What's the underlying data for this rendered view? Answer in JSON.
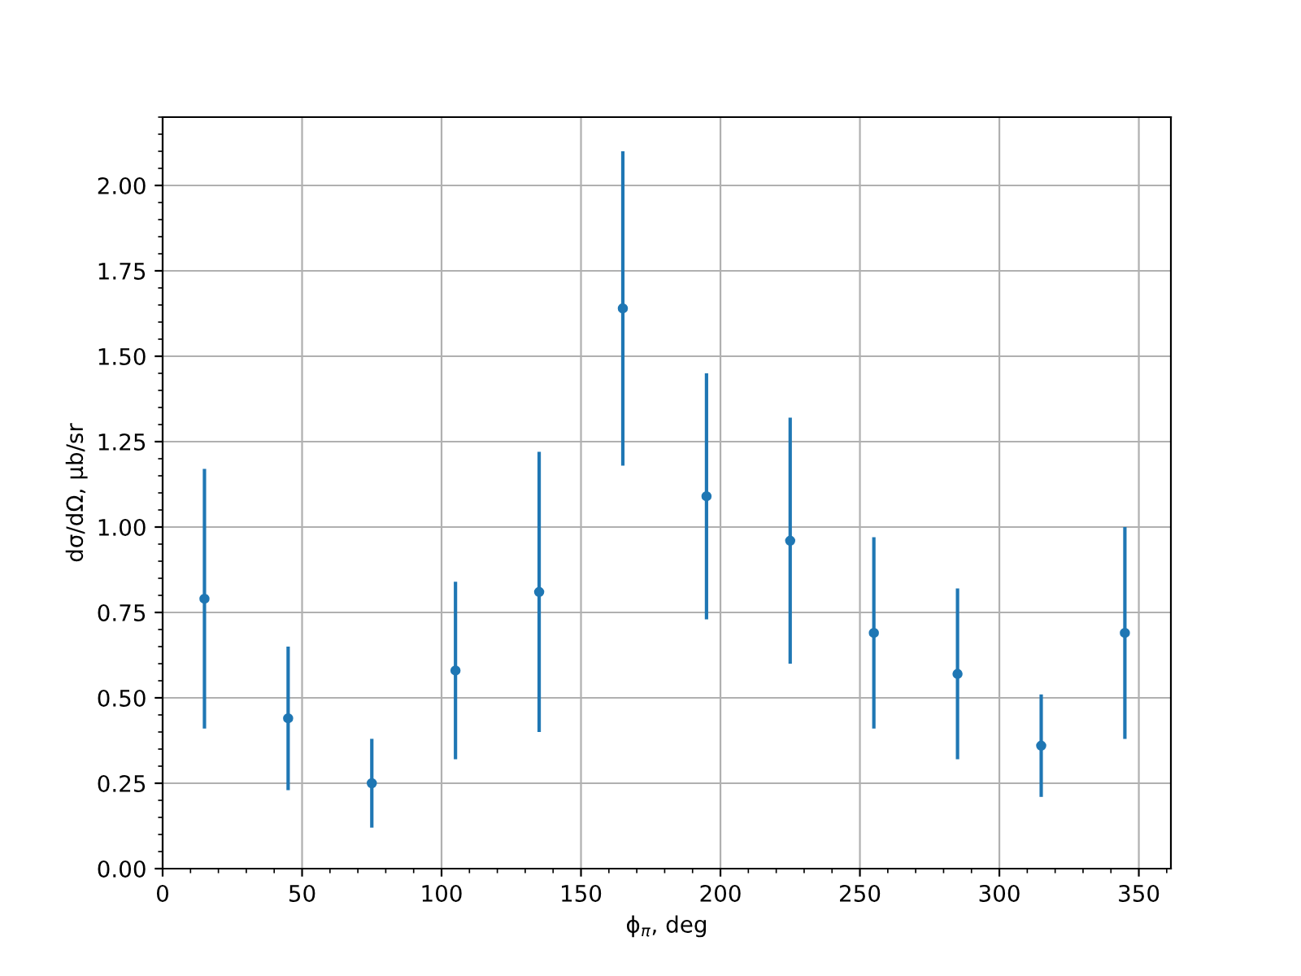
{
  "chart_data": {
    "type": "scatter",
    "xlabel": "ϕ$_{π}$, deg",
    "ylabel": "dσ/dΩ, μb/sr",
    "x": [
      15,
      45,
      75,
      105,
      135,
      165,
      195,
      225,
      255,
      285,
      315,
      345
    ],
    "series": [
      {
        "color": "#1f77b4",
        "values": [
          0.79,
          0.44,
          0.25,
          0.58,
          0.81,
          1.64,
          1.09,
          0.96,
          0.69,
          0.57,
          0.36,
          0.69
        ],
        "errors": [
          0.38,
          0.21,
          0.13,
          0.26,
          0.41,
          0.46,
          0.36,
          0.36,
          0.28,
          0.25,
          0.15,
          0.31
        ]
      }
    ],
    "marker": "circle",
    "grid": true,
    "legend": false,
    "xlim": [
      0,
      361.5
    ],
    "ylim": [
      0,
      2.2
    ],
    "xticks": [
      0,
      50,
      100,
      150,
      200,
      250,
      300,
      350
    ],
    "yticks": [
      {
        "value": 0,
        "label": "0.00"
      },
      {
        "value": 0.25,
        "label": "0.25"
      },
      {
        "value": 0.5,
        "label": "0.50"
      },
      {
        "value": 0.75,
        "label": "0.75"
      },
      {
        "value": 1.0,
        "label": "1.00"
      },
      {
        "value": 1.25,
        "label": "1.25"
      },
      {
        "value": 1.5,
        "label": "1.50"
      },
      {
        "value": 1.75,
        "label": "1.75"
      },
      {
        "value": 2.0,
        "label": "2.00"
      }
    ]
  }
}
